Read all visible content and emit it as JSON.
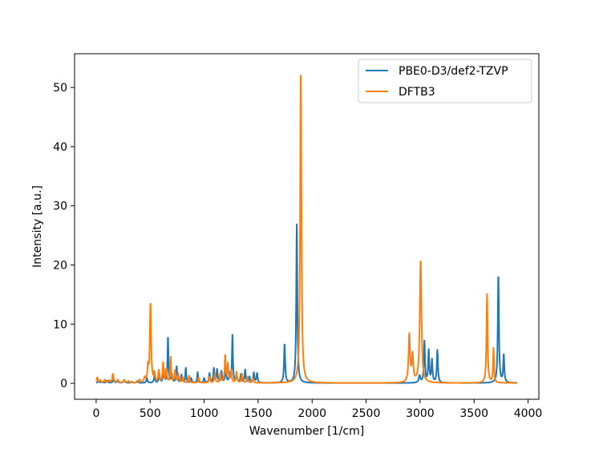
{
  "chart_data": {
    "type": "line",
    "title": "",
    "xlabel": "Wavenumber [1/cm]",
    "ylabel": "Intensity [a.u.]",
    "xlim": [
      -200,
      4100
    ],
    "ylim": [
      -2.7,
      55.7
    ],
    "xticks": [
      0,
      500,
      1000,
      1500,
      2000,
      2500,
      3000,
      3500,
      4000
    ],
    "yticks": [
      0,
      10,
      20,
      30,
      40,
      50
    ],
    "grid": false,
    "legend": "top-right",
    "line_width": 0,
    "series": [
      {
        "name": "PBE0-D3/def2-TZVP",
        "color": "#1f77b4",
        "x_range": [
          0,
          3900
        ],
        "baseline": 0.05,
        "peaks": [
          [
            20,
            0.3,
            8
          ],
          [
            50,
            0.2,
            8
          ],
          [
            100,
            0.4,
            8
          ],
          [
            160,
            0.5,
            8
          ],
          [
            200,
            0.3,
            8
          ],
          [
            260,
            0.4,
            8
          ],
          [
            330,
            0.2,
            8
          ],
          [
            380,
            0.3,
            8
          ],
          [
            470,
            0.8,
            6
          ],
          [
            540,
            1.2,
            6
          ],
          [
            585,
            1.5,
            6
          ],
          [
            625,
            2.4,
            6
          ],
          [
            665,
            7.8,
            5
          ],
          [
            700,
            1.4,
            6
          ],
          [
            745,
            2.8,
            6
          ],
          [
            790,
            1.3,
            6
          ],
          [
            830,
            2.5,
            5
          ],
          [
            880,
            0.8,
            6
          ],
          [
            940,
            1.8,
            5
          ],
          [
            1000,
            0.8,
            6
          ],
          [
            1050,
            1.6,
            6
          ],
          [
            1090,
            2.4,
            6
          ],
          [
            1120,
            2.2,
            6
          ],
          [
            1160,
            1.9,
            6
          ],
          [
            1200,
            2.6,
            6
          ],
          [
            1235,
            1.5,
            6
          ],
          [
            1262,
            8.0,
            5
          ],
          [
            1300,
            1.3,
            6
          ],
          [
            1340,
            1.4,
            6
          ],
          [
            1380,
            2.2,
            6
          ],
          [
            1420,
            1.0,
            6
          ],
          [
            1460,
            1.7,
            6
          ],
          [
            1490,
            1.6,
            6
          ],
          [
            1745,
            6.6,
            6
          ],
          [
            1858,
            26.8,
            6
          ],
          [
            2995,
            1.2,
            8
          ],
          [
            3040,
            7.0,
            6
          ],
          [
            3080,
            5.4,
            6
          ],
          [
            3110,
            3.8,
            6
          ],
          [
            3160,
            5.5,
            6
          ],
          [
            3725,
            18.3,
            6
          ],
          [
            3775,
            4.7,
            6
          ]
        ]
      },
      {
        "name": "DFTB3",
        "color": "#ff7f0e",
        "x_range": [
          0,
          3900
        ],
        "baseline": 0.05,
        "peaks": [
          [
            10,
            0.9,
            8
          ],
          [
            40,
            0.4,
            8
          ],
          [
            80,
            0.5,
            8
          ],
          [
            120,
            0.4,
            8
          ],
          [
            155,
            1.5,
            7
          ],
          [
            200,
            0.5,
            8
          ],
          [
            260,
            0.5,
            8
          ],
          [
            300,
            0.3,
            8
          ],
          [
            400,
            0.5,
            8
          ],
          [
            450,
            0.8,
            8
          ],
          [
            480,
            2.4,
            6
          ],
          [
            503,
            13.4,
            7
          ],
          [
            540,
            1.5,
            6
          ],
          [
            580,
            2.0,
            6
          ],
          [
            620,
            3.3,
            6
          ],
          [
            650,
            2.2,
            6
          ],
          [
            690,
            4.3,
            5
          ],
          [
            730,
            2.0,
            6
          ],
          [
            760,
            1.5,
            6
          ],
          [
            800,
            1.0,
            6
          ],
          [
            860,
            1.2,
            6
          ],
          [
            950,
            0.9,
            6
          ],
          [
            1050,
            1.0,
            6
          ],
          [
            1100,
            1.5,
            6
          ],
          [
            1150,
            1.5,
            6
          ],
          [
            1195,
            4.6,
            6
          ],
          [
            1220,
            3.1,
            6
          ],
          [
            1250,
            2.0,
            6
          ],
          [
            1300,
            1.8,
            6
          ],
          [
            1350,
            1.5,
            6
          ],
          [
            1400,
            1.0,
            6
          ],
          [
            1450,
            0.8,
            6
          ],
          [
            1895,
            53.0,
            7
          ],
          [
            2900,
            8.0,
            8
          ],
          [
            2930,
            4.5,
            8
          ],
          [
            3005,
            20.7,
            9
          ],
          [
            3620,
            15.0,
            6
          ],
          [
            3680,
            5.8,
            5
          ]
        ]
      }
    ]
  }
}
